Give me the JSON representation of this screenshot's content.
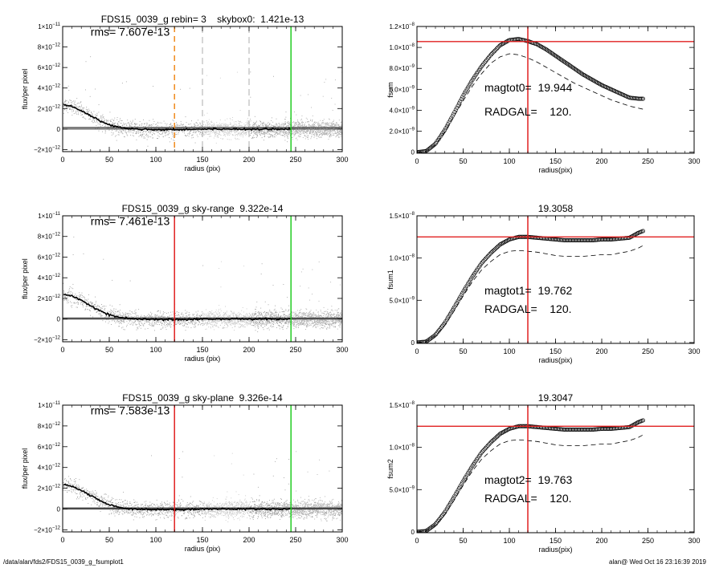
{
  "chart_data": [
    {
      "id": "p1",
      "type": "scatter",
      "title": "FDS15_0039_g rebin= 3    skybox0:  1.421e-13",
      "xlabel": "radius (pix)",
      "ylabel": "flux/per pixel",
      "xlim": [
        0,
        300
      ],
      "ylim": [
        -2.2e-12,
        1e-11
      ],
      "xticks": [
        0,
        50,
        100,
        150,
        200,
        250,
        300
      ],
      "xtick_labels": [
        "0",
        "50",
        "100",
        "150",
        "200",
        "250",
        "300"
      ],
      "yticks": [
        -2e-12,
        0,
        2e-12,
        4e-12,
        6e-12,
        8e-12,
        1e-11
      ],
      "ytick_labels": [
        {
          "m": "−2×10",
          "e": "−12"
        },
        {
          "m": "0",
          "e": ""
        },
        {
          "m": "2×10",
          "e": "−12"
        },
        {
          "m": "4×10",
          "e": "−12"
        },
        {
          "m": "6×10",
          "e": "−12"
        },
        {
          "m": "8×10",
          "e": "−12"
        },
        {
          "m": "1×10",
          "e": "−11"
        }
      ],
      "annotations": [
        {
          "text": "rms= 7.607e-13"
        }
      ],
      "profile": {
        "x": [
          0,
          10,
          20,
          30,
          40,
          50,
          60,
          70,
          80,
          100,
          120,
          150,
          200,
          245
        ],
        "y": [
          2.4e-12,
          2.2e-12,
          1.8e-12,
          1.3e-12,
          8e-13,
          4e-13,
          2e-13,
          5e-14,
          0,
          -5e-14,
          -5e-14,
          0,
          0,
          0
        ]
      },
      "vlines": [
        {
          "x": 120,
          "color": "#f08a1c",
          "style": "dashed"
        },
        {
          "x": 150,
          "color": "#999999",
          "style": "dashed"
        },
        {
          "x": 200,
          "color": "#999999",
          "style": "dashed"
        },
        {
          "x": 245,
          "color": "#22cc22",
          "style": "solid"
        }
      ],
      "hlines": [
        {
          "y": 1.421e-13,
          "color": "#555555",
          "style": "solid"
        }
      ]
    },
    {
      "id": "p2",
      "type": "line",
      "title": "",
      "xlabel": "radius(pix)",
      "ylabel": "fsum",
      "xlim": [
        0,
        300
      ],
      "ylim": [
        -1e-10,
        1.2e-08
      ],
      "xticks": [
        0,
        50,
        100,
        150,
        200,
        250,
        300
      ],
      "xtick_labels": [
        "0",
        "50",
        "100",
        "150",
        "200",
        "250",
        "300"
      ],
      "yticks": [
        0,
        2e-09,
        4e-09,
        6e-09,
        8e-09,
        1e-08,
        1.2e-08
      ],
      "ytick_labels": [
        {
          "m": "0",
          "e": ""
        },
        {
          "m": "2.0×10",
          "e": "−9"
        },
        {
          "m": "4.0×10",
          "e": "−9"
        },
        {
          "m": "6.0×10",
          "e": "−9"
        },
        {
          "m": "8.0×10",
          "e": "−9"
        },
        {
          "m": "1.0×10",
          "e": "−8"
        },
        {
          "m": "1.2×10",
          "e": "−8"
        }
      ],
      "annotations": [
        {
          "text": "magtot0=  19.944"
        },
        {
          "text": "RADGAL=    120."
        }
      ],
      "series": [
        {
          "style": "circles",
          "x": [
            0,
            10,
            20,
            30,
            40,
            50,
            60,
            70,
            80,
            90,
            100,
            110,
            120,
            130,
            140,
            150,
            160,
            170,
            180,
            190,
            200,
            210,
            220,
            230,
            240,
            245
          ],
          "y": [
            0,
            1e-10,
            8e-10,
            2.1e-09,
            3.7e-09,
            5.4e-09,
            6.9e-09,
            8.2e-09,
            9.3e-09,
            1.02e-08,
            1.07e-08,
            1.08e-08,
            1.06e-08,
            1.03e-08,
            9.8e-09,
            9.2e-09,
            8.6e-09,
            8e-09,
            7.4e-09,
            6.9e-09,
            6.4e-09,
            6e-09,
            5.6e-09,
            5.2e-09,
            5.1e-09,
            5.1e-09
          ]
        },
        {
          "style": "dashed",
          "x": [
            0,
            10,
            20,
            30,
            40,
            50,
            60,
            70,
            80,
            90,
            100,
            110,
            120,
            130,
            140,
            150,
            160,
            170,
            180,
            190,
            200,
            210,
            220,
            230,
            240,
            245
          ],
          "y": [
            0,
            1e-10,
            7e-10,
            1.9e-09,
            3.4e-09,
            4.9e-09,
            6.3e-09,
            7.5e-09,
            8.5e-09,
            9.1e-09,
            9.4e-09,
            9.3e-09,
            9e-09,
            8.6e-09,
            8.1e-09,
            7.6e-09,
            7.1e-09,
            6.6e-09,
            6.2e-09,
            5.8e-09,
            5.4e-09,
            5e-09,
            4.7e-09,
            4.4e-09,
            4.2e-09,
            4.1e-09
          ]
        }
      ],
      "vlines": [
        {
          "x": 120,
          "color": "#e02020",
          "style": "solid"
        }
      ],
      "hlines": [
        {
          "y": 1.056e-08,
          "color": "#e02020",
          "style": "solid"
        }
      ]
    },
    {
      "id": "p3",
      "type": "scatter",
      "title": "FDS15_0039_g sky-range  9.322e-14",
      "xlabel": "radius (pix)",
      "ylabel": "flux/per pixel",
      "xlim": [
        0,
        300
      ],
      "ylim": [
        -2.2e-12,
        1e-11
      ],
      "xticks": [
        0,
        50,
        100,
        150,
        200,
        250,
        300
      ],
      "xtick_labels": [
        "0",
        "50",
        "100",
        "150",
        "200",
        "250",
        "300"
      ],
      "yticks": [
        -2e-12,
        0,
        2e-12,
        4e-12,
        6e-12,
        8e-12,
        1e-11
      ],
      "ytick_labels": [
        {
          "m": "−2×10",
          "e": "−12"
        },
        {
          "m": "0",
          "e": ""
        },
        {
          "m": "2×10",
          "e": "−12"
        },
        {
          "m": "4×10",
          "e": "−12"
        },
        {
          "m": "6×10",
          "e": "−12"
        },
        {
          "m": "8×10",
          "e": "−12"
        },
        {
          "m": "1×10",
          "e": "−11"
        }
      ],
      "annotations": [
        {
          "text": "rms= 7.461e-13"
        }
      ],
      "profile": {
        "x": [
          0,
          10,
          20,
          30,
          40,
          50,
          60,
          70,
          80,
          100,
          120,
          150,
          200,
          245
        ],
        "y": [
          2.4e-12,
          2.2e-12,
          1.8e-12,
          1.3e-12,
          8e-13,
          4e-13,
          2e-13,
          5e-14,
          0,
          -5e-14,
          -5e-14,
          0,
          0,
          0
        ]
      },
      "vlines": [
        {
          "x": 120,
          "color": "#e02020",
          "style": "solid"
        },
        {
          "x": 245,
          "color": "#22cc22",
          "style": "solid"
        }
      ],
      "hlines": [
        {
          "y": 9.322e-14,
          "color": "#555555",
          "style": "solid"
        }
      ]
    },
    {
      "id": "p4",
      "type": "line",
      "title": "19.3058",
      "xlabel": "radius(pix)",
      "ylabel": "fsum1",
      "xlim": [
        0,
        300
      ],
      "ylim": [
        -1e-10,
        1.5e-08
      ],
      "xticks": [
        0,
        50,
        100,
        150,
        200,
        250,
        300
      ],
      "xtick_labels": [
        "0",
        "50",
        "100",
        "150",
        "200",
        "250",
        "300"
      ],
      "yticks": [
        0,
        5e-09,
        1e-08,
        1.5e-08
      ],
      "ytick_labels": [
        {
          "m": "0",
          "e": ""
        },
        {
          "m": "5.0×10",
          "e": "−9"
        },
        {
          "m": "1.0×10",
          "e": "−8"
        },
        {
          "m": "1.5×10",
          "e": "−8"
        }
      ],
      "annotations": [
        {
          "text": "magtot1=  19.762"
        },
        {
          "text": "RADGAL=    120."
        }
      ],
      "series": [
        {
          "style": "circles",
          "x": [
            0,
            10,
            20,
            30,
            40,
            50,
            60,
            70,
            80,
            90,
            100,
            110,
            120,
            130,
            140,
            150,
            160,
            170,
            180,
            190,
            200,
            210,
            220,
            230,
            240,
            245
          ],
          "y": [
            0,
            1e-10,
            9e-10,
            2.3e-09,
            4.1e-09,
            6e-09,
            7.8e-09,
            9.4e-09,
            1.06e-08,
            1.16e-08,
            1.22e-08,
            1.25e-08,
            1.25e-08,
            1.24e-08,
            1.23e-08,
            1.22e-08,
            1.21e-08,
            1.21e-08,
            1.21e-08,
            1.21e-08,
            1.22e-08,
            1.22e-08,
            1.23e-08,
            1.24e-08,
            1.3e-08,
            1.32e-08
          ]
        },
        {
          "style": "dashed",
          "x": [
            0,
            10,
            20,
            30,
            40,
            50,
            60,
            70,
            80,
            90,
            100,
            110,
            120,
            130,
            140,
            150,
            160,
            170,
            180,
            190,
            200,
            210,
            220,
            230,
            240,
            245
          ],
          "y": [
            0,
            1e-10,
            8e-10,
            2e-09,
            3.7e-09,
            5.5e-09,
            7.2e-09,
            8.6e-09,
            9.6e-09,
            1.04e-08,
            1.08e-08,
            1.09e-08,
            1.08e-08,
            1.07e-08,
            1.05e-08,
            1.03e-08,
            1.02e-08,
            1.02e-08,
            1.02e-08,
            1.03e-08,
            1.04e-08,
            1.04e-08,
            1.06e-08,
            1.08e-08,
            1.12e-08,
            1.15e-08
          ]
        }
      ],
      "vlines": [
        {
          "x": 120,
          "color": "#e02020",
          "style": "solid"
        }
      ],
      "hlines": [
        {
          "y": 1.25e-08,
          "color": "#e02020",
          "style": "solid"
        }
      ]
    },
    {
      "id": "p5",
      "type": "scatter",
      "title": "FDS15_0039_g sky-plane  9.326e-14",
      "xlabel": "radius (pix)",
      "ylabel": "flux/per pixel",
      "xlim": [
        0,
        300
      ],
      "ylim": [
        -2.2e-12,
        1e-11
      ],
      "xticks": [
        0,
        50,
        100,
        150,
        200,
        250,
        300
      ],
      "xtick_labels": [
        "0",
        "50",
        "100",
        "150",
        "200",
        "250",
        "300"
      ],
      "yticks": [
        -2e-12,
        0,
        2e-12,
        4e-12,
        6e-12,
        8e-12,
        1e-11
      ],
      "ytick_labels": [
        {
          "m": "−2×10",
          "e": "−12"
        },
        {
          "m": "0",
          "e": ""
        },
        {
          "m": "2×10",
          "e": "−12"
        },
        {
          "m": "4×10",
          "e": "−12"
        },
        {
          "m": "6×10",
          "e": "−12"
        },
        {
          "m": "8×10",
          "e": "−12"
        },
        {
          "m": "1×10",
          "e": "−11"
        }
      ],
      "annotations": [
        {
          "text": "rms= 7.583e-13"
        }
      ],
      "profile": {
        "x": [
          0,
          10,
          20,
          30,
          40,
          50,
          60,
          70,
          80,
          100,
          120,
          150,
          200,
          245
        ],
        "y": [
          2.4e-12,
          2.2e-12,
          1.8e-12,
          1.3e-12,
          8e-13,
          4e-13,
          2e-13,
          5e-14,
          0,
          -5e-14,
          -5e-14,
          0,
          0,
          0
        ]
      },
      "vlines": [
        {
          "x": 120,
          "color": "#e02020",
          "style": "solid"
        },
        {
          "x": 245,
          "color": "#22cc22",
          "style": "solid"
        }
      ],
      "hlines": [
        {
          "y": 9.326e-14,
          "color": "#555555",
          "style": "solid"
        }
      ]
    },
    {
      "id": "p6",
      "type": "line",
      "title": "19.3047",
      "xlabel": "radius(pix)",
      "ylabel": "fsum2",
      "xlim": [
        0,
        300
      ],
      "ylim": [
        -1e-10,
        1.5e-08
      ],
      "xticks": [
        0,
        50,
        100,
        150,
        200,
        250,
        300
      ],
      "xtick_labels": [
        "0",
        "50",
        "100",
        "150",
        "200",
        "250",
        "300"
      ],
      "yticks": [
        0,
        5e-09,
        1e-08,
        1.5e-08
      ],
      "ytick_labels": [
        {
          "m": "0",
          "e": ""
        },
        {
          "m": "5.0×10",
          "e": "−9"
        },
        {
          "m": "1.0×10",
          "e": "−8"
        },
        {
          "m": "1.5×10",
          "e": "−8"
        }
      ],
      "annotations": [
        {
          "text": "magtot2=  19.763"
        },
        {
          "text": "RADGAL=    120."
        }
      ],
      "series": [
        {
          "style": "circles",
          "x": [
            0,
            10,
            20,
            30,
            40,
            50,
            60,
            70,
            80,
            90,
            100,
            110,
            120,
            130,
            140,
            150,
            160,
            170,
            180,
            190,
            200,
            210,
            220,
            230,
            240,
            245
          ],
          "y": [
            0,
            1e-10,
            9e-10,
            2.3e-09,
            4.1e-09,
            6e-09,
            7.8e-09,
            9.4e-09,
            1.06e-08,
            1.16e-08,
            1.22e-08,
            1.25e-08,
            1.25e-08,
            1.24e-08,
            1.23e-08,
            1.22e-08,
            1.21e-08,
            1.21e-08,
            1.21e-08,
            1.21e-08,
            1.22e-08,
            1.22e-08,
            1.23e-08,
            1.24e-08,
            1.3e-08,
            1.32e-08
          ]
        },
        {
          "style": "dashed",
          "x": [
            0,
            10,
            20,
            30,
            40,
            50,
            60,
            70,
            80,
            90,
            100,
            110,
            120,
            130,
            140,
            150,
            160,
            170,
            180,
            190,
            200,
            210,
            220,
            230,
            240,
            245
          ],
          "y": [
            0,
            1e-10,
            8e-10,
            2e-09,
            3.7e-09,
            5.5e-09,
            7.2e-09,
            8.6e-09,
            9.6e-09,
            1.04e-08,
            1.08e-08,
            1.09e-08,
            1.08e-08,
            1.07e-08,
            1.05e-08,
            1.03e-08,
            1.02e-08,
            1.02e-08,
            1.02e-08,
            1.03e-08,
            1.04e-08,
            1.04e-08,
            1.06e-08,
            1.08e-08,
            1.12e-08,
            1.15e-08
          ]
        }
      ],
      "vlines": [
        {
          "x": 120,
          "color": "#e02020",
          "style": "solid"
        }
      ],
      "hlines": [
        {
          "y": 1.25e-08,
          "color": "#e02020",
          "style": "solid"
        }
      ]
    }
  ],
  "footer": {
    "left": "/data/alan/fds2/FDS15_0039_g_fsumplot1",
    "right": "alan@  Wed Oct 16 23:16:39 2019"
  }
}
